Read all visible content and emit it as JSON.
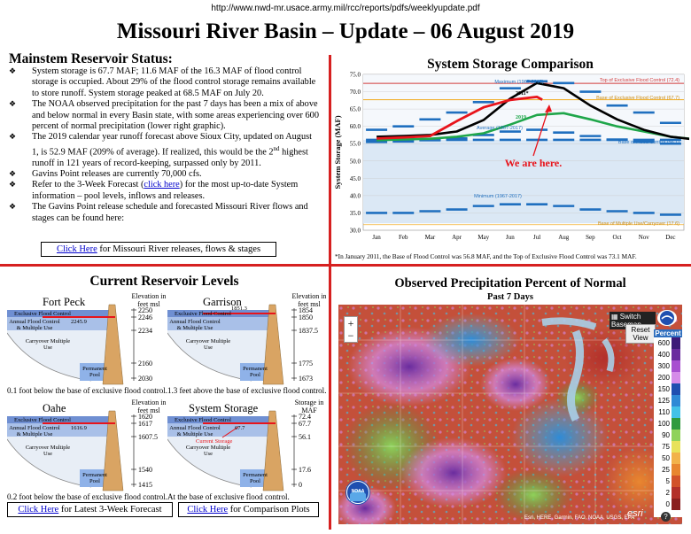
{
  "url": "http://www.nwd-mr.usace.army.mil/rcc/reports/pdfs/weeklyupdate.pdf",
  "title": "Missouri River Basin – Update – 06 August 2019",
  "status": {
    "heading": "Mainstem Reservoir Status:",
    "bullet_icon": "diamond-bullet-icon",
    "b1": "System storage is 67.7 MAF; 11.6 MAF of the 16.3 MAF of flood control storage is occupied.  About 29% of the flood control storage remains available to store runoff.  System storage peaked at 68.5 MAF on July 20.",
    "b2": "The NOAA observed precipitation for the past 7 days has been a mix of above and below normal in every Basin state, with some areas experiencing over 600 percent of normal precipitation (lower right graphic).",
    "b3_pre": "The 2019 calendar year runoff forecast above Sioux City, updated on August 1, is 52.9 MAF (209% of average).  If realized, this would be the 2",
    "b3_sup": "nd",
    "b3_post": " highest runoff in 121 years of record-keeping, surpassed only by 2011.",
    "b4": "Gavins Point releases are currently 70,000 cfs.",
    "b5_pre": "Refer to the 3-Week Forecast (",
    "b5_link": "click here",
    "b5_post": ") for the most up-to-date System information – pool levels, inflows and releases.",
    "b6": "The Gavins Point release schedule and forecasted Missouri River flows and stages can be found here:",
    "link_click": "Click Here",
    "link_rest": " for Missouri River releases, flows & stages"
  },
  "storage_chart": {
    "title": "System Storage Comparison",
    "ylabel": "System Storage (MAF)",
    "months": [
      "Jan",
      "Feb",
      "Mar",
      "Apr",
      "May",
      "Jun",
      "Jul",
      "Aug",
      "Sep",
      "Oct",
      "Nov",
      "Dec"
    ],
    "yticks": [
      "75.0",
      "70.0",
      "65.0",
      "60.0",
      "55.0",
      "50.0",
      "45.0",
      "40.0",
      "35.0",
      "30.0"
    ],
    "lbl_max_top": "Maximum (1967-2017)",
    "lbl_2011": "2011*",
    "lbl_top_excl": "Top of Exclusive Flood Control (72.4)",
    "lbl_base_excl": "Base of Exclusive Flood Control (67.7)",
    "lbl_2019": "2019",
    "lbl_average": "Average (1967-2017)",
    "lbl_base_flood": "Base of Flood Control (56.1)",
    "lbl_here": "We are here.",
    "lbl_min": "Minimum (1967-2017)",
    "lbl_base_carry": "Base of Multiple Use/Carryover (17.6)",
    "footnote": "*In January 2011, the Base of Flood Control was 56.8 MAF, and the Top of Exclusive Flood Control was 73.1 MAF.",
    "colors": {
      "y2019": "#e8141b",
      "y2011": "#000000",
      "y2018": "#1fa64a",
      "top": "#d23b3b",
      "base": "#f2b234",
      "flood": "#4aa8d6",
      "minmax": "#1f6fbf"
    }
  },
  "chart_data": {
    "type": "line",
    "title": "System Storage Comparison",
    "xlabel": "",
    "ylabel": "System Storage (MAF)",
    "categories": [
      "Jan",
      "Feb",
      "Mar",
      "Apr",
      "May",
      "Jun",
      "Jul",
      "Aug",
      "Sep",
      "Oct",
      "Nov",
      "Dec"
    ],
    "ylim": [
      30,
      75
    ],
    "series": [
      {
        "name": "2019",
        "x": [
          1,
          2,
          3,
          4,
          5,
          6,
          7,
          7.2
        ],
        "values": [
          56.5,
          56.8,
          57.2,
          61.5,
          65.5,
          67.6,
          68.5,
          67.7
        ]
      },
      {
        "name": "2011*",
        "x": [
          1,
          2,
          3,
          4,
          5,
          6,
          7,
          8,
          9,
          10,
          11,
          12,
          12.9
        ],
        "values": [
          57.0,
          57.2,
          57.5,
          58.5,
          61.8,
          68.0,
          72.5,
          71.0,
          66.0,
          62.0,
          59.0,
          57.0,
          56.2
        ]
      },
      {
        "name": "2018",
        "x": [
          1,
          2,
          3,
          4,
          5,
          6,
          7,
          8,
          9,
          10,
          11,
          12,
          12.9
        ],
        "values": [
          56.0,
          56.2,
          56.4,
          57.0,
          58.0,
          60.5,
          63.3,
          63.8,
          62.0,
          60.0,
          58.5,
          57.0,
          56.3
        ]
      },
      {
        "name": "Maximum (1967-2017)",
        "values": [
          59,
          60,
          62,
          64,
          67,
          71,
          73,
          72.5,
          70,
          66,
          64,
          61
        ]
      },
      {
        "name": "Average (1967-2017)",
        "values": [
          55.5,
          55.6,
          56,
          56.5,
          57.5,
          58.5,
          59,
          58.2,
          57.2,
          56.2,
          55.5,
          55
        ]
      },
      {
        "name": "Minimum (1967-2017)",
        "values": [
          35,
          35,
          35.5,
          36,
          37,
          37.5,
          37.5,
          37,
          36,
          35.5,
          35,
          34.5
        ]
      },
      {
        "name": "Top of Exclusive Flood Control",
        "values": [
          72.4,
          72.4,
          72.4,
          72.4,
          72.4,
          72.4,
          72.4,
          72.4,
          72.4,
          72.4,
          72.4,
          72.4
        ]
      },
      {
        "name": "Base of Exclusive Flood Control",
        "values": [
          67.7,
          67.7,
          67.7,
          67.7,
          67.7,
          67.7,
          67.7,
          67.7,
          67.7,
          67.7,
          67.7,
          67.7
        ]
      },
      {
        "name": "Base of Flood Control",
        "values": [
          56.1,
          56.1,
          56.1,
          56.1,
          56.1,
          56.1,
          56.1,
          56.1,
          56.1,
          56.1,
          56.1,
          56.1
        ]
      }
    ]
  },
  "levels": {
    "title": "Current Reservoir Levels",
    "elev_header": "Elevation in feet msl",
    "storage_header": "Storage in MAF",
    "zone_excl": "Exclusive Flood Control",
    "zone_annual": "Annual Flood Control & Multiple Use",
    "zone_carry": "Carryover Multiple Use",
    "zone_perm": "Permanent Pool",
    "current_storage": "Current Storage",
    "fort_peck": {
      "name": "Fort Peck",
      "value": "2245.9",
      "t1": "2250",
      "t2": "2246",
      "t3": "2234",
      "t4": "2160",
      "t5": "2030",
      "cap": "0.1 foot below the base of exclusive flood control."
    },
    "garrison": {
      "name": "Garrison",
      "value": "1851.3",
      "t1": "1854",
      "t2": "1850",
      "t3": "1837.5",
      "t4": "1775",
      "t5": "1673",
      "cap": "1.3 feet above the base of exclusive flood control."
    },
    "oahe": {
      "name": "Oahe",
      "value": "1616.9",
      "t1": "1620",
      "t2": "1617",
      "t3": "1607.5",
      "t4": "1540",
      "t5": "1415",
      "cap": "0.2 foot below the base of exclusive flood control."
    },
    "system": {
      "name": "System Storage",
      "value": "67.7",
      "t1": "72.4",
      "t2": "67.7",
      "t3": "56.1",
      "t4": "17.6",
      "t5": "0",
      "cap": "At the base of exclusive flood control."
    },
    "link1_click": "Click Here",
    "link1_rest": " for Latest 3-Week Forecast",
    "link2_click": "Click Here",
    "link2_rest": " for Comparison Plots"
  },
  "precip": {
    "title": "Observed Precipitation Percent of Normal",
    "subtitle": "Past 7 Days",
    "zoom_in": "+",
    "zoom_out": "−",
    "switch_basemap": "Switch Basemap",
    "reset_view": "Reset View",
    "legend_title": "Percent",
    "legend_values": [
      "600",
      "400",
      "300",
      "200",
      "150",
      "125",
      "110",
      "100",
      "90",
      "75",
      "50",
      "25",
      "5",
      "2",
      "0"
    ],
    "legend_colors": [
      "#3d1a78",
      "#6a2c9e",
      "#a84fd0",
      "#d58be8",
      "#1f4fb0",
      "#2f8ad6",
      "#43c2e8",
      "#2f9a3e",
      "#8fd25a",
      "#e8e25a",
      "#f2b24a",
      "#e8862f",
      "#d2522a",
      "#b3302a",
      "#8a1f1f"
    ],
    "attribution": "Esri, HERE, Garmin, FAO, NOAA, USGS, EPA",
    "esri_logo": "esri",
    "noaa_logo": "NOAA",
    "info_icon": "?"
  }
}
